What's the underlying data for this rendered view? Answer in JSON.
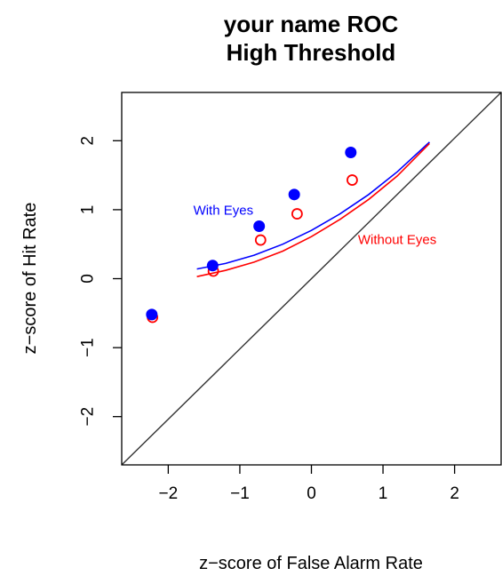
{
  "chart_data": {
    "type": "scatter",
    "title": [
      "your name ROC",
      "High Threshold"
    ],
    "xlabel": "z−score of False Alarm Rate",
    "ylabel": "z−score of Hit Rate",
    "xlim": [
      -2.65,
      2.65
    ],
    "ylim": [
      -2.7,
      2.7
    ],
    "x_ticks": [
      -2,
      -1,
      0,
      1,
      2
    ],
    "x_tick_labels": [
      "−2",
      "−1",
      "0",
      "1",
      "2"
    ],
    "y_ticks": [
      -2,
      -1,
      0,
      1,
      2
    ],
    "y_tick_labels": [
      "−2",
      "−1",
      "0",
      "1",
      "2"
    ],
    "grid": false,
    "legend": "none",
    "reference_line": {
      "from": [
        -2.65,
        -2.7
      ],
      "to": [
        2.65,
        2.7
      ],
      "color": "#333333"
    },
    "series": [
      {
        "name": "With Eyes",
        "color": "#0000ff",
        "marker": "filled-circle",
        "points": [
          {
            "x": -2.23,
            "y": -0.52
          },
          {
            "x": -1.38,
            "y": 0.19
          },
          {
            "x": -0.73,
            "y": 0.76
          },
          {
            "x": -0.24,
            "y": 1.22
          },
          {
            "x": 0.55,
            "y": 1.83
          }
        ],
        "curve": [
          {
            "x": -1.6,
            "y": 0.14
          },
          {
            "x": -1.2,
            "y": 0.22
          },
          {
            "x": -0.8,
            "y": 0.34
          },
          {
            "x": -0.4,
            "y": 0.5
          },
          {
            "x": 0.0,
            "y": 0.7
          },
          {
            "x": 0.4,
            "y": 0.94
          },
          {
            "x": 0.8,
            "y": 1.22
          },
          {
            "x": 1.2,
            "y": 1.55
          },
          {
            "x": 1.65,
            "y": 1.98
          }
        ]
      },
      {
        "name": "Without Eyes",
        "color": "#ff0000",
        "marker": "open-circle",
        "points": [
          {
            "x": -2.22,
            "y": -0.56
          },
          {
            "x": -1.37,
            "y": 0.11
          },
          {
            "x": -0.71,
            "y": 0.56
          },
          {
            "x": -0.2,
            "y": 0.94
          },
          {
            "x": 0.57,
            "y": 1.43
          }
        ],
        "curve": [
          {
            "x": -1.6,
            "y": 0.03
          },
          {
            "x": -1.2,
            "y": 0.12
          },
          {
            "x": -0.8,
            "y": 0.24
          },
          {
            "x": -0.4,
            "y": 0.4
          },
          {
            "x": 0.0,
            "y": 0.61
          },
          {
            "x": 0.4,
            "y": 0.86
          },
          {
            "x": 0.8,
            "y": 1.15
          },
          {
            "x": 1.2,
            "y": 1.49
          },
          {
            "x": 1.65,
            "y": 1.96
          }
        ]
      }
    ],
    "annotations": [
      {
        "text": "With Eyes",
        "x": -1.65,
        "y": 0.99,
        "color": "#0000ff"
      },
      {
        "text": "Without Eyes",
        "x": 0.65,
        "y": 0.57,
        "color": "#ff0000"
      }
    ]
  }
}
